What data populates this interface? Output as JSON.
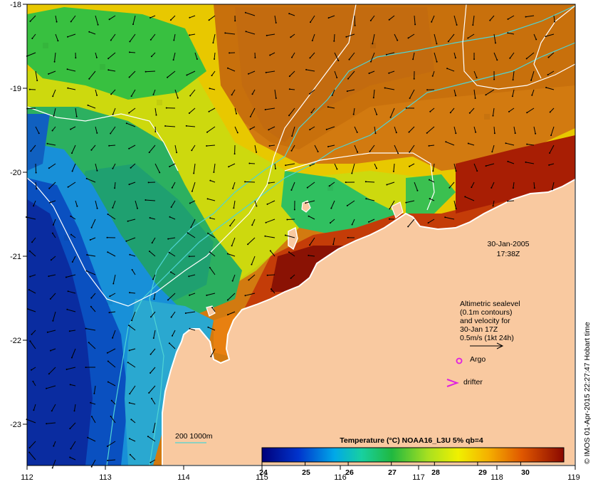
{
  "map": {
    "lon_ticks": [
      "112",
      "113",
      "114",
      "115",
      "116",
      "117",
      "118",
      "119"
    ],
    "lat_ticks": [
      "-18",
      "-19",
      "-20",
      "-21",
      "-22",
      "-23"
    ],
    "timestamp": {
      "date": "30-Jan-2005",
      "time": "17:38Z"
    },
    "annotation_lines": [
      "Altimetric sealevel",
      "(0.1m contours)",
      "and velocity for",
      "30-Jan 17Z",
      "0.5m/s (1kt 24h)"
    ],
    "legend": {
      "argo": "Argo",
      "drifter": "drifter",
      "isobath": "200  1000m"
    },
    "colorbar": {
      "title": "Temperature (°C) NOAA16_L3U 5% qb=4",
      "ticks": [
        "24",
        "25",
        "26",
        "27",
        "28",
        "29",
        "30"
      ]
    },
    "credit": "© IMOS 01-Apr-2015 22:27:47 Hobart time"
  },
  "colors": {
    "land": "#f9c9a0",
    "isobath": "#4fd4d4",
    "sealevel_contour": "#ffffff",
    "marker": "#e020e0"
  }
}
